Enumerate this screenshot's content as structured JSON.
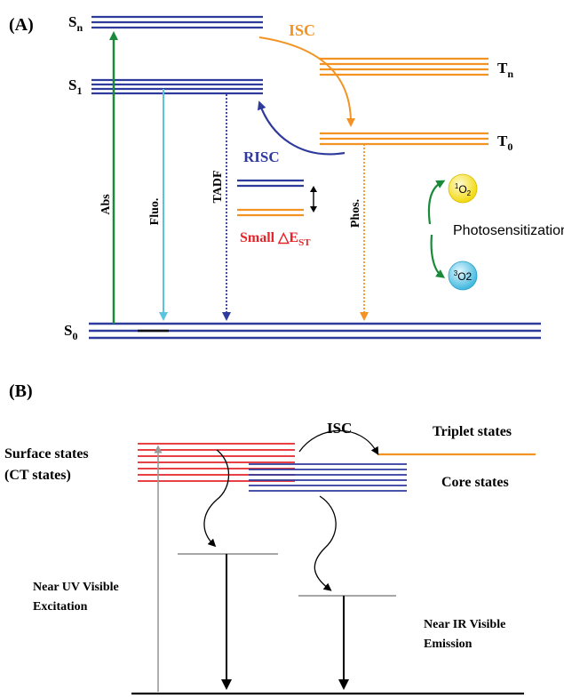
{
  "panel_a": {
    "label": "(A)",
    "levels": {
      "sn": {
        "main": "S",
        "sub": "n"
      },
      "s1": {
        "main": "S",
        "sub": "1"
      },
      "s0": {
        "main": "S",
        "sub": "0"
      },
      "tn": {
        "main": "T",
        "sub": "n"
      },
      "t0": {
        "main": "T",
        "sub": "0"
      }
    },
    "processes": {
      "isc": "ISC",
      "risc": "RISC",
      "abs": "Abs",
      "fluo": "Fluo.",
      "tadf": "TADF",
      "phos": "Phos."
    },
    "small_est": {
      "prefix": "Small ",
      "delta": "△E",
      "sub": "ST"
    },
    "photosensitization": "Photosensitization",
    "singlet_oxygen": {
      "sup": "1",
      "main": "O",
      "sub": "2"
    },
    "triplet_oxygen": {
      "sup": "3",
      "main": "O2"
    },
    "colors": {
      "singlet": "#2e3a9c",
      "triplet": "#f39323",
      "abs": "#1a8a3a",
      "fluo": "#5bc4dd",
      "small_est": "#e5252a",
      "photo_arrow": "#1a8a3a",
      "o2_yellow": "#f6e51a",
      "o2_cyan": "#5fc7e6"
    }
  },
  "panel_b": {
    "label": "(B)",
    "surface_states": [
      "Surface states",
      "(CT states)"
    ],
    "core_states": "Core states",
    "triplet_states": "Triplet states",
    "isc": "ISC",
    "excitation": [
      "Near UV Visible",
      "Excitation"
    ],
    "emission": [
      "Near IR Visible",
      "Emission"
    ],
    "colors": {
      "surface": "#e5252a",
      "core": "#2e3a9c",
      "triplet": "#f39323"
    }
  }
}
